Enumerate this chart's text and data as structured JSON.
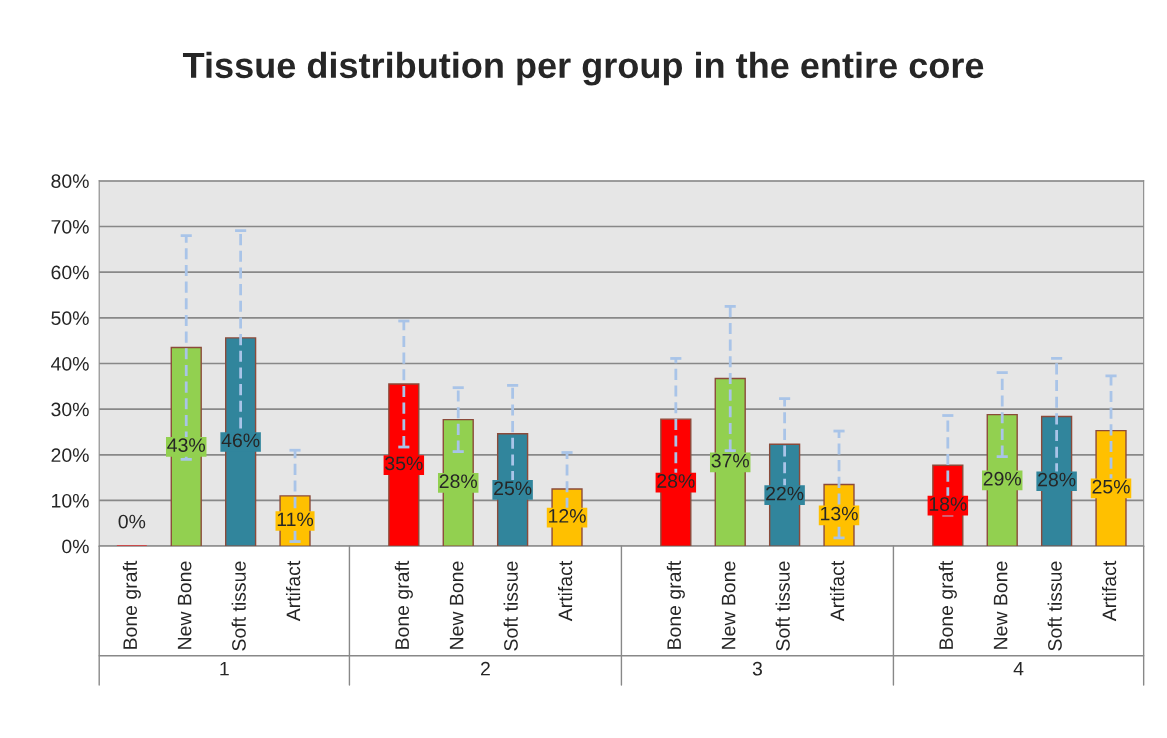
{
  "chart_data": {
    "type": "bar",
    "title": "Tissue distribution per group in the entire core",
    "categories": [
      "Bone graft",
      "New Bone",
      "Soft tissue",
      "Artifact",
      "Bone graft",
      "New Bone",
      "Soft tissue",
      "Artifact",
      "Bone graft",
      "New Bone",
      "Soft tissue",
      "Artifact",
      "Bone graft",
      "New Bone",
      "Soft tissue",
      "Artifact"
    ],
    "values": [
      0,
      43.5,
      45.6,
      11,
      35.5,
      27.7,
      24.6,
      12.5,
      27.8,
      36.7,
      22.3,
      13.5,
      17.7,
      28.8,
      28.4,
      25.3
    ],
    "colors": [
      "#ff0000",
      "#92d050",
      "#31859c",
      "#ffc000",
      "#ff0000",
      "#92d050",
      "#31859c",
      "#ffc000",
      "#ff0000",
      "#92d050",
      "#31859c",
      "#ffc000",
      "#ff0000",
      "#92d050",
      "#31859c",
      "#ffc000"
    ],
    "errors": [
      null,
      24.5,
      23.5,
      10,
      13.8,
      7,
      10.6,
      8,
      13.3,
      15.8,
      10,
      11.7,
      10.9,
      9.2,
      12.7,
      12
    ],
    "value_labels": [
      "0%",
      "43%",
      "46%",
      "11%",
      "35%",
      "28%",
      "25%",
      "12%",
      "28%",
      "37%",
      "22%",
      "13%",
      "18%",
      "29%",
      "28%",
      "25%"
    ],
    "annotations": [
      "1",
      "2",
      "3",
      "4"
    ],
    "ylim": [
      0,
      80
    ],
    "yticks": [
      {
        "value": 0,
        "label": "0%"
      },
      {
        "value": 10,
        "label": "10%"
      },
      {
        "value": 20,
        "label": "20%"
      },
      {
        "value": 30,
        "label": "30%"
      },
      {
        "value": 40,
        "label": "40%"
      },
      {
        "value": 50,
        "label": "50%"
      },
      {
        "value": 60,
        "label": "60%"
      },
      {
        "value": 70,
        "label": "70%"
      },
      {
        "value": 80,
        "label": "80%"
      }
    ],
    "grid": "y",
    "legend": false
  }
}
